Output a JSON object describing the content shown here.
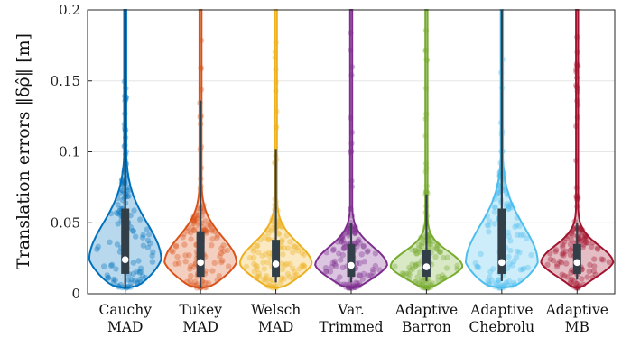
{
  "chart_data": {
    "type": "violin",
    "ylabel": "Translation errors ‖δρ̂‖ [m]",
    "ylim": [
      0,
      0.2
    ],
    "yticks": [
      0,
      0.05,
      0.1,
      0.15,
      0.2
    ],
    "ytick_labels": [
      "0",
      "0.05",
      "0.1",
      "0.15",
      "0.2"
    ],
    "grid": true,
    "categories": [
      {
        "line1": "Cauchy",
        "line2": "MAD"
      },
      {
        "line1": "Tukey",
        "line2": "MAD"
      },
      {
        "line1": "Welsch",
        "line2": "MAD"
      },
      {
        "line1": "Var.",
        "line2": "Trimmed"
      },
      {
        "line1": "Adaptive",
        "line2": "Barron"
      },
      {
        "line1": "Adaptive",
        "line2": "Chebrolu"
      },
      {
        "line1": "Adaptive",
        "line2": "MB"
      }
    ],
    "series": [
      {
        "color": "#0072BD",
        "median": 0.024,
        "q1": 0.014,
        "q3": 0.06,
        "whisker_low": 0.004,
        "whisker_high": 0.2,
        "min": 0.004,
        "max": 0.2
      },
      {
        "color": "#D95319",
        "median": 0.022,
        "q1": 0.012,
        "q3": 0.044,
        "whisker_low": 0.004,
        "whisker_high": 0.136,
        "min": 0.004,
        "max": 0.2
      },
      {
        "color": "#EDB120",
        "median": 0.021,
        "q1": 0.012,
        "q3": 0.038,
        "whisker_low": 0.008,
        "whisker_high": 0.102,
        "min": 0.004,
        "max": 0.2
      },
      {
        "color": "#7E2F8E",
        "median": 0.02,
        "q1": 0.012,
        "q3": 0.035,
        "whisker_low": 0.008,
        "whisker_high": 0.05,
        "min": 0.004,
        "max": 0.2
      },
      {
        "color": "#77AC30",
        "median": 0.019,
        "q1": 0.012,
        "q3": 0.031,
        "whisker_low": 0.009,
        "whisker_high": 0.07,
        "min": 0.004,
        "max": 0.2
      },
      {
        "color": "#4DBEEE",
        "median": 0.022,
        "q1": 0.014,
        "q3": 0.06,
        "whisker_low": 0.009,
        "whisker_high": 0.2,
        "min": 0.004,
        "max": 0.2
      },
      {
        "color": "#A2142F",
        "median": 0.022,
        "q1": 0.014,
        "q3": 0.035,
        "whisker_low": 0.01,
        "whisker_high": 0.05,
        "min": 0.004,
        "max": 0.2
      }
    ]
  }
}
